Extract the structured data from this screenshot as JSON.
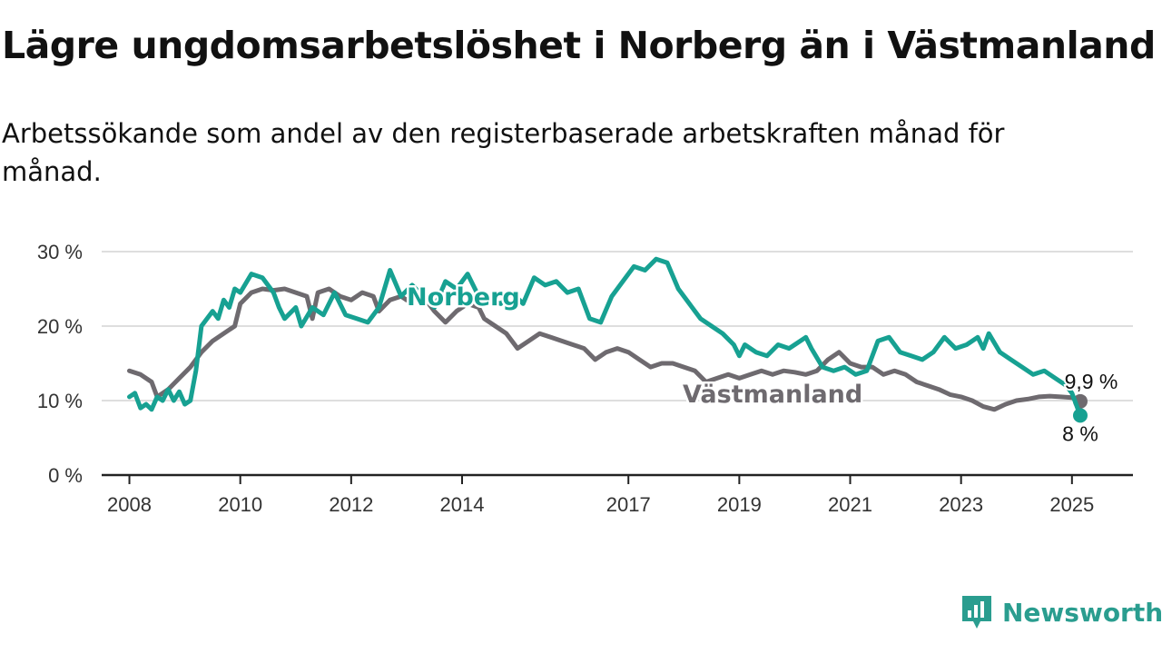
{
  "title": "Lägre ungdomsarbetslöshet i Norberg än i Västmanland",
  "subtitle": "Arbetssökande som andel av den registerbaserade arbetskraften månad för månad.",
  "brand": {
    "name": "Newsworthy",
    "icon": "newsworthy-logo-icon",
    "color": "#2a9d8f"
  },
  "chart_data": {
    "type": "line",
    "xlim": [
      2007.5,
      2026.1
    ],
    "ylim": [
      0,
      30
    ],
    "y_ticks": [
      0,
      10,
      20,
      30
    ],
    "y_tick_labels": [
      "0 %",
      "10 %",
      "20 %",
      "30 %"
    ],
    "x_ticks": [
      2008,
      2010,
      2012,
      2014,
      2017,
      2019,
      2021,
      2023,
      2025
    ],
    "x_tick_labels": [
      "2008",
      "2010",
      "2012",
      "2014",
      "2017",
      "2019",
      "2021",
      "2023",
      "2025"
    ],
    "grid": "horizontal",
    "series": [
      {
        "name": "Västmanland",
        "color": "#6e6a6f",
        "end_label": "9,9 %",
        "points": [
          [
            2008.0,
            14.0
          ],
          [
            2008.2,
            13.5
          ],
          [
            2008.4,
            12.5
          ],
          [
            2008.5,
            10.5
          ],
          [
            2008.7,
            11.5
          ],
          [
            2008.9,
            13.0
          ],
          [
            2009.1,
            14.5
          ],
          [
            2009.3,
            16.5
          ],
          [
            2009.5,
            18.0
          ],
          [
            2009.7,
            19.0
          ],
          [
            2009.9,
            20.0
          ],
          [
            2010.0,
            23.0
          ],
          [
            2010.2,
            24.5
          ],
          [
            2010.4,
            25.0
          ],
          [
            2010.6,
            24.8
          ],
          [
            2010.8,
            25.0
          ],
          [
            2011.0,
            24.5
          ],
          [
            2011.2,
            24.0
          ],
          [
            2011.3,
            21.0
          ],
          [
            2011.4,
            24.5
          ],
          [
            2011.6,
            25.0
          ],
          [
            2011.8,
            24.0
          ],
          [
            2012.0,
            23.5
          ],
          [
            2012.2,
            24.5
          ],
          [
            2012.4,
            24.0
          ],
          [
            2012.5,
            22.0
          ],
          [
            2012.7,
            23.5
          ],
          [
            2012.9,
            24.0
          ],
          [
            2013.0,
            23.5
          ],
          [
            2013.2,
            24.5
          ],
          [
            2013.4,
            23.0
          ],
          [
            2013.5,
            22.0
          ],
          [
            2013.7,
            20.5
          ],
          [
            2013.9,
            22.0
          ],
          [
            2014.1,
            23.0
          ],
          [
            2014.3,
            22.5
          ],
          [
            2014.4,
            21.0
          ],
          [
            2014.6,
            20.0
          ],
          [
            2014.8,
            19.0
          ],
          [
            2015.0,
            17.0
          ],
          [
            2015.2,
            18.0
          ],
          [
            2015.4,
            19.0
          ],
          [
            2015.6,
            18.5
          ],
          [
            2015.8,
            18.0
          ],
          [
            2016.0,
            17.5
          ],
          [
            2016.2,
            17.0
          ],
          [
            2016.4,
            15.5
          ],
          [
            2016.6,
            16.5
          ],
          [
            2016.8,
            17.0
          ],
          [
            2017.0,
            16.5
          ],
          [
            2017.2,
            15.5
          ],
          [
            2017.4,
            14.5
          ],
          [
            2017.6,
            15.0
          ],
          [
            2017.8,
            15.0
          ],
          [
            2018.0,
            14.5
          ],
          [
            2018.2,
            14.0
          ],
          [
            2018.4,
            12.5
          ],
          [
            2018.6,
            13.0
          ],
          [
            2018.8,
            13.5
          ],
          [
            2019.0,
            13.0
          ],
          [
            2019.2,
            13.5
          ],
          [
            2019.4,
            14.0
          ],
          [
            2019.6,
            13.5
          ],
          [
            2019.8,
            14.0
          ],
          [
            2020.0,
            13.8
          ],
          [
            2020.2,
            13.5
          ],
          [
            2020.4,
            14.0
          ],
          [
            2020.6,
            15.5
          ],
          [
            2020.8,
            16.5
          ],
          [
            2021.0,
            15.0
          ],
          [
            2021.2,
            14.5
          ],
          [
            2021.4,
            14.5
          ],
          [
            2021.6,
            13.5
          ],
          [
            2021.8,
            14.0
          ],
          [
            2022.0,
            13.5
          ],
          [
            2022.2,
            12.5
          ],
          [
            2022.4,
            12.0
          ],
          [
            2022.6,
            11.5
          ],
          [
            2022.8,
            10.8
          ],
          [
            2023.0,
            10.5
          ],
          [
            2023.2,
            10.0
          ],
          [
            2023.4,
            9.2
          ],
          [
            2023.6,
            8.8
          ],
          [
            2023.8,
            9.5
          ],
          [
            2024.0,
            10.0
          ],
          [
            2024.2,
            10.2
          ],
          [
            2024.4,
            10.5
          ],
          [
            2024.6,
            10.6
          ],
          [
            2024.8,
            10.5
          ],
          [
            2025.0,
            10.4
          ],
          [
            2025.15,
            9.9
          ]
        ]
      },
      {
        "name": "Norberg",
        "color": "#17a192",
        "end_label": "8 %",
        "points": [
          [
            2008.0,
            10.5
          ],
          [
            2008.1,
            11.0
          ],
          [
            2008.2,
            9.0
          ],
          [
            2008.3,
            9.5
          ],
          [
            2008.4,
            8.8
          ],
          [
            2008.5,
            10.5
          ],
          [
            2008.6,
            10.0
          ],
          [
            2008.7,
            11.5
          ],
          [
            2008.8,
            10.0
          ],
          [
            2008.9,
            11.2
          ],
          [
            2009.0,
            9.5
          ],
          [
            2009.1,
            10.0
          ],
          [
            2009.2,
            14.0
          ],
          [
            2009.3,
            20.0
          ],
          [
            2009.5,
            22.0
          ],
          [
            2009.6,
            21.0
          ],
          [
            2009.7,
            23.5
          ],
          [
            2009.8,
            22.5
          ],
          [
            2009.9,
            25.0
          ],
          [
            2010.0,
            24.5
          ],
          [
            2010.2,
            27.0
          ],
          [
            2010.4,
            26.5
          ],
          [
            2010.6,
            24.5
          ],
          [
            2010.7,
            22.5
          ],
          [
            2010.8,
            21.0
          ],
          [
            2011.0,
            22.5
          ],
          [
            2011.1,
            20.0
          ],
          [
            2011.3,
            22.5
          ],
          [
            2011.5,
            21.5
          ],
          [
            2011.7,
            24.5
          ],
          [
            2011.9,
            21.5
          ],
          [
            2012.1,
            21.0
          ],
          [
            2012.3,
            20.5
          ],
          [
            2012.5,
            22.5
          ],
          [
            2012.7,
            27.5
          ],
          [
            2012.9,
            24.0
          ],
          [
            2013.1,
            25.5
          ],
          [
            2013.3,
            24.0
          ],
          [
            2013.5,
            22.5
          ],
          [
            2013.7,
            26.0
          ],
          [
            2013.9,
            25.0
          ],
          [
            2014.1,
            27.0
          ],
          [
            2014.3,
            24.0
          ],
          [
            2014.5,
            23.5
          ],
          [
            2014.7,
            23.0
          ],
          [
            2014.9,
            24.5
          ],
          [
            2015.1,
            23.0
          ],
          [
            2015.3,
            26.5
          ],
          [
            2015.5,
            25.5
          ],
          [
            2015.7,
            26.0
          ],
          [
            2015.9,
            24.5
          ],
          [
            2016.1,
            25.0
          ],
          [
            2016.3,
            21.0
          ],
          [
            2016.5,
            20.5
          ],
          [
            2016.7,
            24.0
          ],
          [
            2016.9,
            26.0
          ],
          [
            2017.1,
            28.0
          ],
          [
            2017.3,
            27.5
          ],
          [
            2017.5,
            29.0
          ],
          [
            2017.7,
            28.5
          ],
          [
            2017.9,
            25.0
          ],
          [
            2018.1,
            23.0
          ],
          [
            2018.3,
            21.0
          ],
          [
            2018.5,
            20.0
          ],
          [
            2018.7,
            19.0
          ],
          [
            2018.9,
            17.5
          ],
          [
            2019.0,
            16.0
          ],
          [
            2019.1,
            17.5
          ],
          [
            2019.3,
            16.5
          ],
          [
            2019.5,
            16.0
          ],
          [
            2019.7,
            17.5
          ],
          [
            2019.9,
            17.0
          ],
          [
            2020.0,
            17.5
          ],
          [
            2020.2,
            18.5
          ],
          [
            2020.3,
            17.0
          ],
          [
            2020.5,
            14.5
          ],
          [
            2020.7,
            14.0
          ],
          [
            2020.9,
            14.5
          ],
          [
            2021.1,
            13.5
          ],
          [
            2021.3,
            14.0
          ],
          [
            2021.5,
            18.0
          ],
          [
            2021.7,
            18.5
          ],
          [
            2021.9,
            16.5
          ],
          [
            2022.1,
            16.0
          ],
          [
            2022.3,
            15.5
          ],
          [
            2022.5,
            16.5
          ],
          [
            2022.7,
            18.5
          ],
          [
            2022.9,
            17.0
          ],
          [
            2023.1,
            17.5
          ],
          [
            2023.3,
            18.5
          ],
          [
            2023.4,
            17.0
          ],
          [
            2023.5,
            19.0
          ],
          [
            2023.7,
            16.5
          ],
          [
            2023.9,
            15.5
          ],
          [
            2024.1,
            14.5
          ],
          [
            2024.3,
            13.5
          ],
          [
            2024.5,
            14.0
          ],
          [
            2024.7,
            13.0
          ],
          [
            2024.9,
            12.0
          ],
          [
            2025.0,
            11.0
          ],
          [
            2025.05,
            10.0
          ],
          [
            2025.1,
            9.0
          ],
          [
            2025.15,
            8.0
          ]
        ]
      }
    ]
  }
}
